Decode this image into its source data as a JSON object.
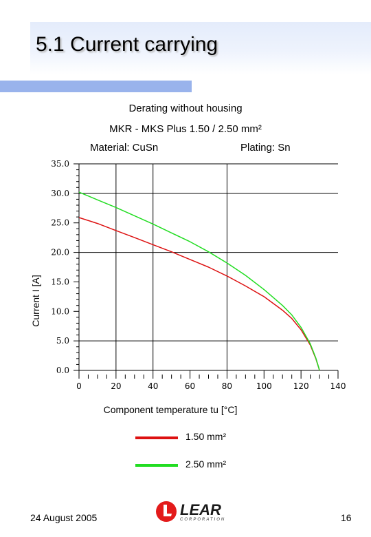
{
  "slide": {
    "title": "5.1 Current carrying",
    "date": "24 August 2005",
    "page_number": "16",
    "accent_color": "#99b3ec"
  },
  "headings": {
    "line1": "Derating without housing",
    "line2": "MKR - MKS  Plus 1.50 / 2.50 mm²",
    "material": "Material: CuSn",
    "plating": "Plating: Sn"
  },
  "logo": {
    "text": "LEAR",
    "subtext": "CORPORATION"
  },
  "chart_data": {
    "type": "line",
    "xlabel": "Component temperature tu [°C]",
    "ylabel": "Current I [A]",
    "xlim": [
      0,
      140
    ],
    "ylim": [
      0,
      35
    ],
    "x_ticks": [
      "0",
      "20",
      "40",
      "60",
      "80",
      "100",
      "120",
      "140"
    ],
    "y_ticks": [
      "0.0",
      "5.0",
      "10.0",
      "15.0",
      "20.0",
      "25.0",
      "30.0",
      "35.0"
    ],
    "vertical_grid_at": [
      20,
      40,
      80
    ],
    "horizontal_grid_at": [
      5,
      20,
      30,
      35
    ],
    "legend_position": "bottom",
    "series": [
      {
        "name": "1.50 mm²",
        "color": "#dd1111",
        "x": [
          0,
          10,
          20,
          30,
          40,
          50,
          60,
          70,
          80,
          90,
          100,
          110,
          115,
          120,
          125,
          128,
          130
        ],
        "y": [
          25.9,
          24.9,
          23.7,
          22.5,
          21.3,
          20.1,
          18.8,
          17.5,
          16.0,
          14.3,
          12.5,
          10.2,
          8.8,
          6.9,
          4.3,
          2.0,
          0.0
        ]
      },
      {
        "name": "2.50 mm²",
        "color": "#22dd22",
        "x": [
          0,
          10,
          20,
          30,
          40,
          50,
          60,
          70,
          80,
          90,
          100,
          110,
          115,
          120,
          125,
          128,
          130
        ],
        "y": [
          30.2,
          28.9,
          27.6,
          26.2,
          24.8,
          23.3,
          21.8,
          20.1,
          18.2,
          16.1,
          13.7,
          11.0,
          9.4,
          7.3,
          4.5,
          2.1,
          0.0
        ]
      }
    ]
  }
}
